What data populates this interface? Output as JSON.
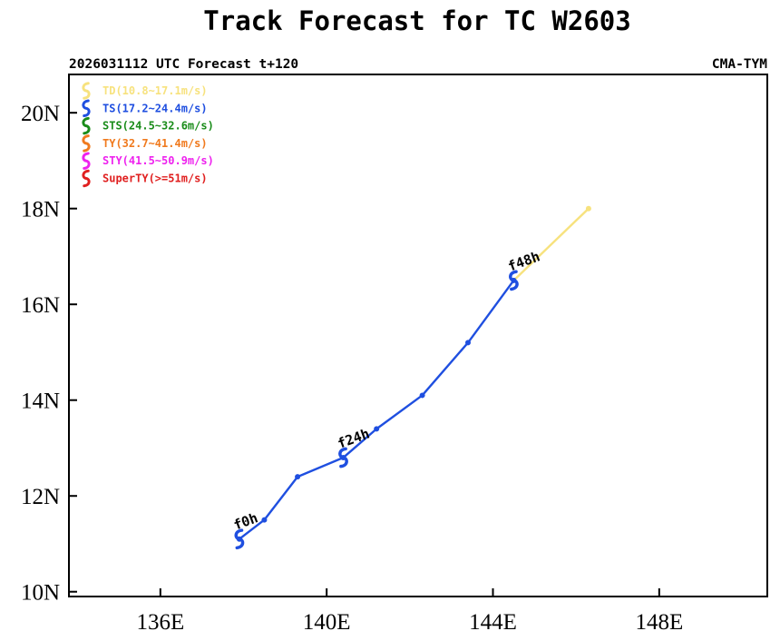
{
  "chart_data": {
    "type": "line",
    "title": "Track Forecast for TC W2603",
    "subtitle_left": "2026031112 UTC Forecast t+120",
    "subtitle_right": "CMA-TYM",
    "x_ticks": [
      {
        "value": 136,
        "label": "136E"
      },
      {
        "value": 140,
        "label": "140E"
      },
      {
        "value": 144,
        "label": "144E"
      },
      {
        "value": 148,
        "label": "148E"
      }
    ],
    "y_ticks": [
      {
        "value": 10,
        "label": "10N"
      },
      {
        "value": 12,
        "label": "12N"
      },
      {
        "value": 14,
        "label": "14N"
      },
      {
        "value": 16,
        "label": "16N"
      },
      {
        "value": 18,
        "label": "18N"
      },
      {
        "value": 20,
        "label": "20N"
      }
    ],
    "xlim": [
      133.8,
      150.6
    ],
    "ylim": [
      9.9,
      20.8
    ],
    "legend": [
      {
        "label": "TD(10.8~17.1m/s)",
        "color": "#f7e27e"
      },
      {
        "label": "TS(17.2~24.4m/s)",
        "color": "#1f4fe0"
      },
      {
        "label": "STS(24.5~32.6m/s)",
        "color": "#1a8c1a"
      },
      {
        "label": "TY(32.7~41.4m/s)",
        "color": "#f07a1e"
      },
      {
        "label": "STY(41.5~50.9m/s)",
        "color": "#ee22ee"
      },
      {
        "label": "SuperTY(>=51m/s)",
        "color": "#e02020"
      }
    ],
    "track": [
      {
        "lon": 137.9,
        "lat": 11.1,
        "cat": "TS"
      },
      {
        "lon": 138.5,
        "lat": 11.5,
        "cat": "TS"
      },
      {
        "lon": 139.3,
        "lat": 12.4,
        "cat": "TS"
      },
      {
        "lon": 140.4,
        "lat": 12.8,
        "cat": "TS"
      },
      {
        "lon": 141.2,
        "lat": 13.4,
        "cat": "TS"
      },
      {
        "lon": 142.3,
        "lat": 14.1,
        "cat": "TS"
      },
      {
        "lon": 143.4,
        "lat": 15.2,
        "cat": "TS"
      },
      {
        "lon": 144.5,
        "lat": 16.5,
        "cat": "TS"
      },
      {
        "lon": 146.3,
        "lat": 18.0,
        "cat": "TD"
      }
    ],
    "track_colors": {
      "TS": "#1f4fe0",
      "TD": "#f7e27e"
    },
    "forecast_labels": [
      {
        "text": "f0h",
        "lon": 137.9,
        "lat": 11.1
      },
      {
        "text": "f24h",
        "lon": 140.4,
        "lat": 12.8
      },
      {
        "text": "f48h",
        "lon": 144.5,
        "lat": 16.5
      }
    ]
  }
}
